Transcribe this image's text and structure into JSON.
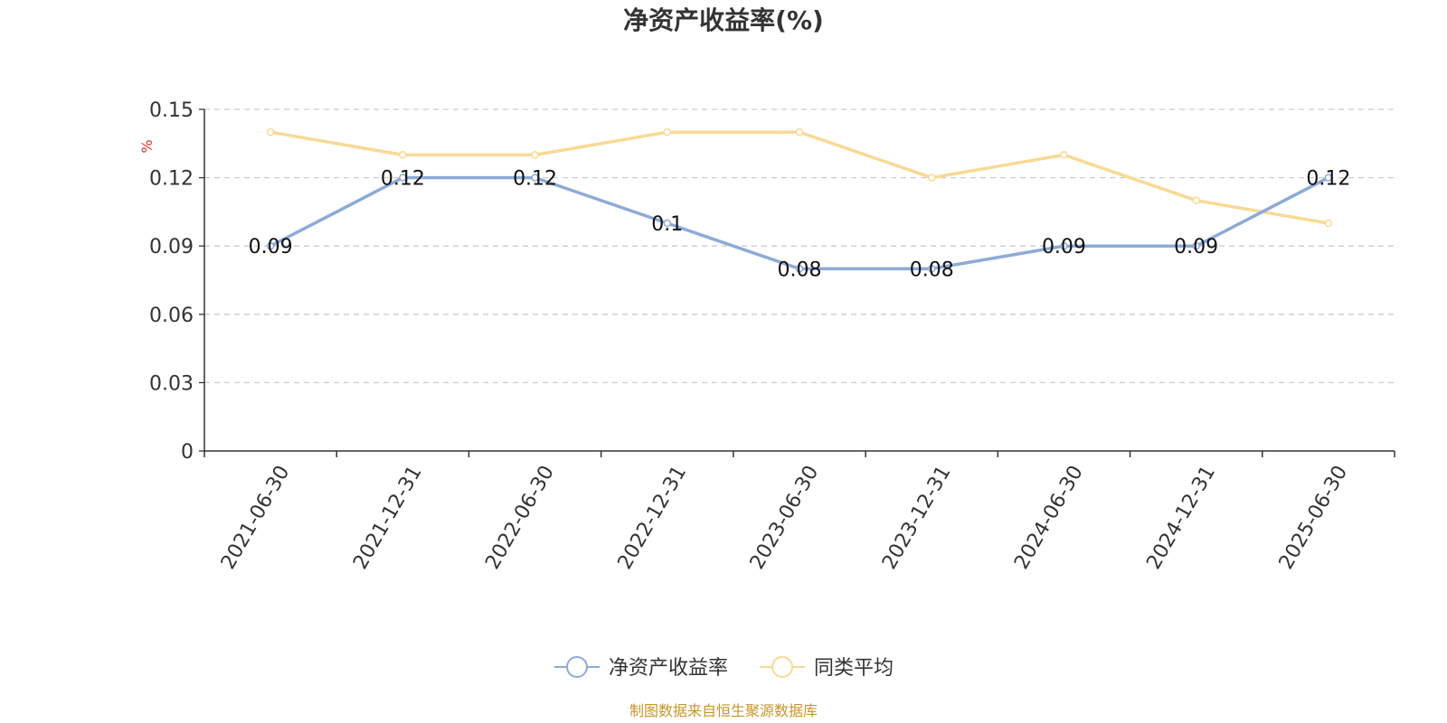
{
  "chart_data": {
    "type": "line",
    "title": "净资产收益率(%)",
    "ylabel": "%",
    "categories": [
      "2021-06-30",
      "2021-12-31",
      "2022-06-30",
      "2022-12-31",
      "2023-06-30",
      "2023-12-31",
      "2024-06-30",
      "2024-12-31",
      "2025-06-30"
    ],
    "y_ticks": [
      "0",
      "0.03",
      "0.06",
      "0.09",
      "0.12",
      "0.15"
    ],
    "ylim": [
      0,
      0.15
    ],
    "grid": true,
    "legend_position": "bottom",
    "series": [
      {
        "name": "净资产收益率",
        "color": "#8eaad6",
        "show_labels": true,
        "values": [
          0.09,
          0.12,
          0.12,
          0.1,
          0.08,
          0.08,
          0.09,
          0.09,
          0.12
        ]
      },
      {
        "name": "同类平均",
        "color": "#f9d994",
        "show_labels": false,
        "values": [
          0.14,
          0.13,
          0.13,
          0.14,
          0.14,
          0.12,
          0.13,
          0.11,
          0.1
        ]
      }
    ],
    "source": "制图数据来自恒生聚源数据库"
  }
}
